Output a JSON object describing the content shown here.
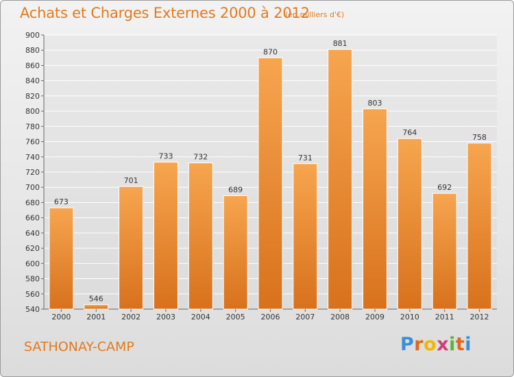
{
  "chart_data": {
    "type": "bar",
    "title": "Achats et Charges Externes 2000 à 2012",
    "unit": "(en milliers d'€)",
    "categories": [
      "2000",
      "2001",
      "2002",
      "2003",
      "2004",
      "2005",
      "2006",
      "2007",
      "2008",
      "2009",
      "2010",
      "2011",
      "2012"
    ],
    "values": [
      673,
      546,
      701,
      733,
      732,
      689,
      870,
      731,
      881,
      803,
      764,
      692,
      758
    ],
    "ylim": [
      540,
      900
    ],
    "yticks": [
      540,
      560,
      580,
      600,
      620,
      640,
      660,
      680,
      700,
      720,
      740,
      760,
      780,
      800,
      820,
      840,
      860,
      880,
      900
    ],
    "grid": true,
    "bar_color": "#f0922e"
  },
  "footer": {
    "city": "SATHONAY-CAMP",
    "logo_letters": [
      "P",
      "r",
      "o",
      "x",
      "i",
      "t",
      "i"
    ],
    "logo_colors": [
      "#3a8fd8",
      "#e0671c",
      "#f2b705",
      "#d23a7a",
      "#5bb33a",
      "#e0671c",
      "#3a8fd8"
    ]
  }
}
